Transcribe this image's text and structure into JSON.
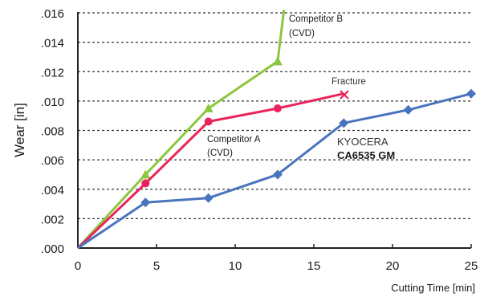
{
  "chart_data": {
    "type": "line",
    "xlabel": "Cutting Time [min]",
    "ylabel": "Wear [in]",
    "xlim": [
      0,
      25
    ],
    "ylim": [
      0,
      0.016
    ],
    "x_ticks": [
      "0",
      "5",
      "10",
      "15",
      "20",
      "25"
    ],
    "y_ticks": [
      ".000",
      ".002",
      ".004",
      ".006",
      ".008",
      ".010",
      ".012",
      ".014",
      ".016"
    ],
    "grid": "horizontal dashed",
    "series": [
      {
        "color": "#8cc63e",
        "marker": "triangle",
        "points": [
          [
            0,
            0.0
          ],
          [
            4.3,
            0.005
          ],
          [
            8.3,
            0.0095
          ],
          [
            12.7,
            0.0127
          ],
          [
            13.1,
            0.0162
          ]
        ]
      },
      {
        "color": "#e8245c",
        "marker": "circle",
        "points": [
          [
            0,
            0.0
          ],
          [
            4.3,
            0.0044
          ],
          [
            8.3,
            0.0086
          ],
          [
            12.7,
            0.0095
          ],
          [
            16.9,
            0.0105
          ]
        ]
      },
      {
        "color": "#4a74bd",
        "marker": "diamond",
        "points": [
          [
            0,
            0.0
          ],
          [
            4.3,
            0.0031
          ],
          [
            8.3,
            0.0034
          ],
          [
            12.7,
            0.005
          ],
          [
            16.9,
            0.0085
          ],
          [
            21,
            0.0094
          ],
          [
            25,
            0.0105
          ]
        ]
      }
    ],
    "annotations": {
      "competitor_b_line1": "Competitor B",
      "competitor_b_line2": "(CVD)",
      "competitor_a_line1": "Competitor A",
      "competitor_a_line2": "(CVD)",
      "kyocera_line1": "KYOCERA",
      "kyocera_line2": "CA6535 GM",
      "fracture": "Fracture"
    }
  }
}
